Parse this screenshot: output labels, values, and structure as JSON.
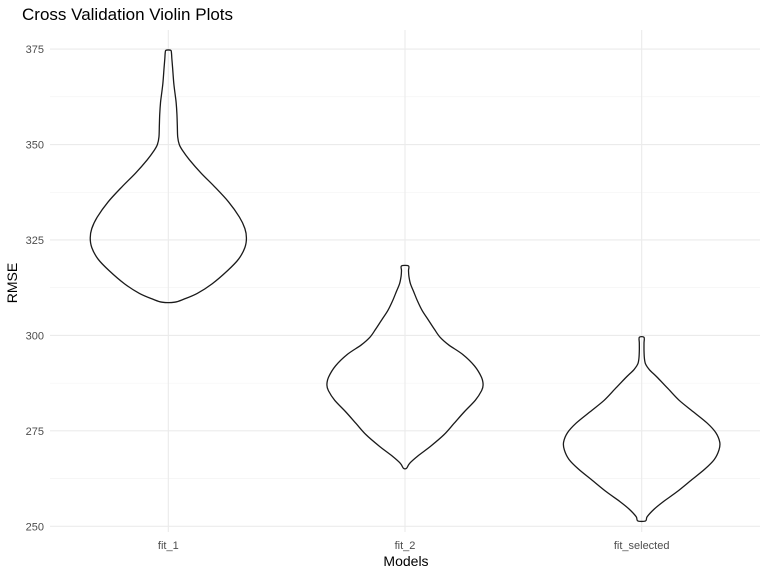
{
  "chart_data": {
    "type": "violin",
    "title": "Cross Validation Violin Plots",
    "xlabel": "Models",
    "ylabel": "RMSE",
    "ylim": [
      248.5,
      380
    ],
    "y_ticks": [
      250,
      275,
      300,
      325,
      350,
      375
    ],
    "grid": true,
    "categories": [
      "fit_1",
      "fit_2",
      "fit_selected"
    ],
    "violins": [
      {
        "category": "fit_1",
        "min": 308.7,
        "max": 374.7,
        "profile": [
          [
            308.7,
            0.08
          ],
          [
            309.5,
            0.2
          ],
          [
            311,
            0.37
          ],
          [
            313.5,
            0.56
          ],
          [
            317,
            0.76
          ],
          [
            320,
            0.9
          ],
          [
            323,
            0.98
          ],
          [
            325.5,
            1.0
          ],
          [
            328,
            0.98
          ],
          [
            331,
            0.91
          ],
          [
            335,
            0.77
          ],
          [
            339,
            0.59
          ],
          [
            342.5,
            0.42
          ],
          [
            346,
            0.27
          ],
          [
            348.5,
            0.18
          ],
          [
            350,
            0.14
          ],
          [
            352,
            0.12
          ],
          [
            355,
            0.115
          ],
          [
            358,
            0.11
          ],
          [
            361,
            0.1
          ],
          [
            363,
            0.088
          ],
          [
            366,
            0.07
          ],
          [
            370,
            0.055
          ],
          [
            372.5,
            0.045
          ],
          [
            374,
            0.04
          ],
          [
            374.7,
            0.03
          ]
        ]
      },
      {
        "category": "fit_2",
        "min": 265.2,
        "max": 318.2,
        "profile": [
          [
            265.2,
            0.02
          ],
          [
            266.5,
            0.06
          ],
          [
            268.5,
            0.17
          ],
          [
            271,
            0.33
          ],
          [
            274,
            0.5
          ],
          [
            277,
            0.63
          ],
          [
            280,
            0.76
          ],
          [
            283,
            0.9
          ],
          [
            285.5,
            0.98
          ],
          [
            287,
            1.0
          ],
          [
            289,
            0.98
          ],
          [
            292,
            0.89
          ],
          [
            295,
            0.74
          ],
          [
            297.5,
            0.56
          ],
          [
            299.5,
            0.45
          ],
          [
            301.5,
            0.38
          ],
          [
            304,
            0.3
          ],
          [
            306.5,
            0.22
          ],
          [
            309,
            0.16
          ],
          [
            311.5,
            0.11
          ],
          [
            313.5,
            0.07
          ],
          [
            315.5,
            0.05
          ],
          [
            317,
            0.045
          ],
          [
            318.2,
            0.045
          ]
        ]
      },
      {
        "category": "fit_selected",
        "min": 251.4,
        "max": 299.5,
        "profile": [
          [
            251.4,
            0.05
          ],
          [
            252.5,
            0.07
          ],
          [
            254.5,
            0.16
          ],
          [
            256.5,
            0.28
          ],
          [
            259,
            0.45
          ],
          [
            262,
            0.63
          ],
          [
            265,
            0.81
          ],
          [
            267.5,
            0.93
          ],
          [
            270,
            0.99
          ],
          [
            272,
            1.0
          ],
          [
            274.5,
            0.95
          ],
          [
            277,
            0.84
          ],
          [
            280,
            0.66
          ],
          [
            283,
            0.48
          ],
          [
            286,
            0.34
          ],
          [
            289,
            0.2
          ],
          [
            291,
            0.1
          ],
          [
            292.5,
            0.05
          ],
          [
            294,
            0.035
          ],
          [
            296,
            0.03
          ],
          [
            298,
            0.03
          ],
          [
            299.5,
            0.03
          ]
        ]
      }
    ]
  }
}
